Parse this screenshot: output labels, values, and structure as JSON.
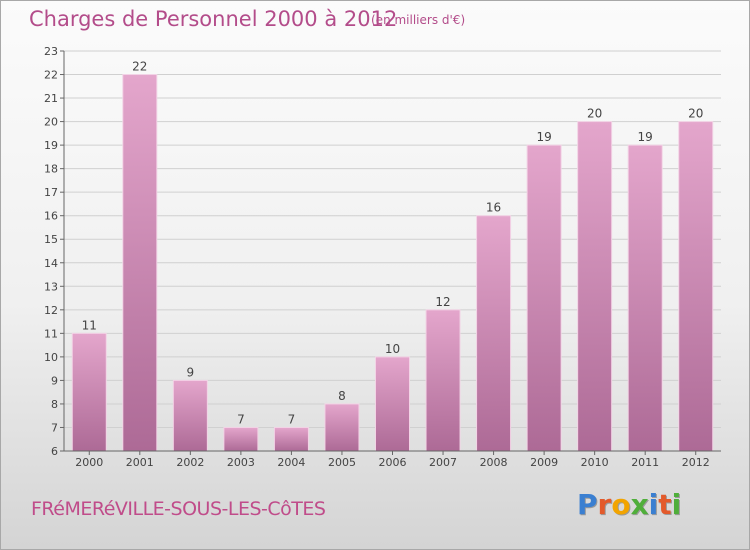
{
  "header": {
    "title": "Charges de Personnel 2000 à 2012",
    "unit": "(en milliers d'€)"
  },
  "footer": {
    "commune": "FRéMERéVILLE-SOUS-LES-CôTES",
    "brand": {
      "text": "Proxiti",
      "letters": [
        {
          "char": "P",
          "color": "#3a7fd1"
        },
        {
          "char": "r",
          "color": "#e35a2b"
        },
        {
          "char": "o",
          "color": "#f2a400"
        },
        {
          "char": "x",
          "color": "#4fae3a"
        },
        {
          "char": "i",
          "color": "#3a7fd1"
        },
        {
          "char": "t",
          "color": "#e35a2b"
        },
        {
          "char": "i",
          "color": "#4fae3a"
        }
      ]
    }
  },
  "colors": {
    "bar_light": "#e4a6cc",
    "bar_dark": "#ad6a96",
    "axis": "#666666",
    "grid": "#d0d0d0",
    "text": "#444444"
  },
  "chart_data": {
    "type": "bar",
    "title": "Charges de Personnel 2000 à 2012",
    "subtitle": "(en milliers d'€)",
    "xlabel": "",
    "ylabel": "",
    "categories": [
      "2000",
      "2001",
      "2002",
      "2003",
      "2004",
      "2005",
      "2006",
      "2007",
      "2008",
      "2009",
      "2010",
      "2011",
      "2012"
    ],
    "values": [
      11,
      22,
      9,
      7,
      7,
      8,
      10,
      12,
      16,
      19,
      20,
      19,
      20
    ],
    "ylim": [
      6,
      23
    ],
    "yticks": [
      6,
      7,
      8,
      9,
      10,
      11,
      12,
      13,
      14,
      15,
      16,
      17,
      18,
      19,
      20,
      21,
      22,
      23
    ],
    "grid": true,
    "legend": "none"
  }
}
